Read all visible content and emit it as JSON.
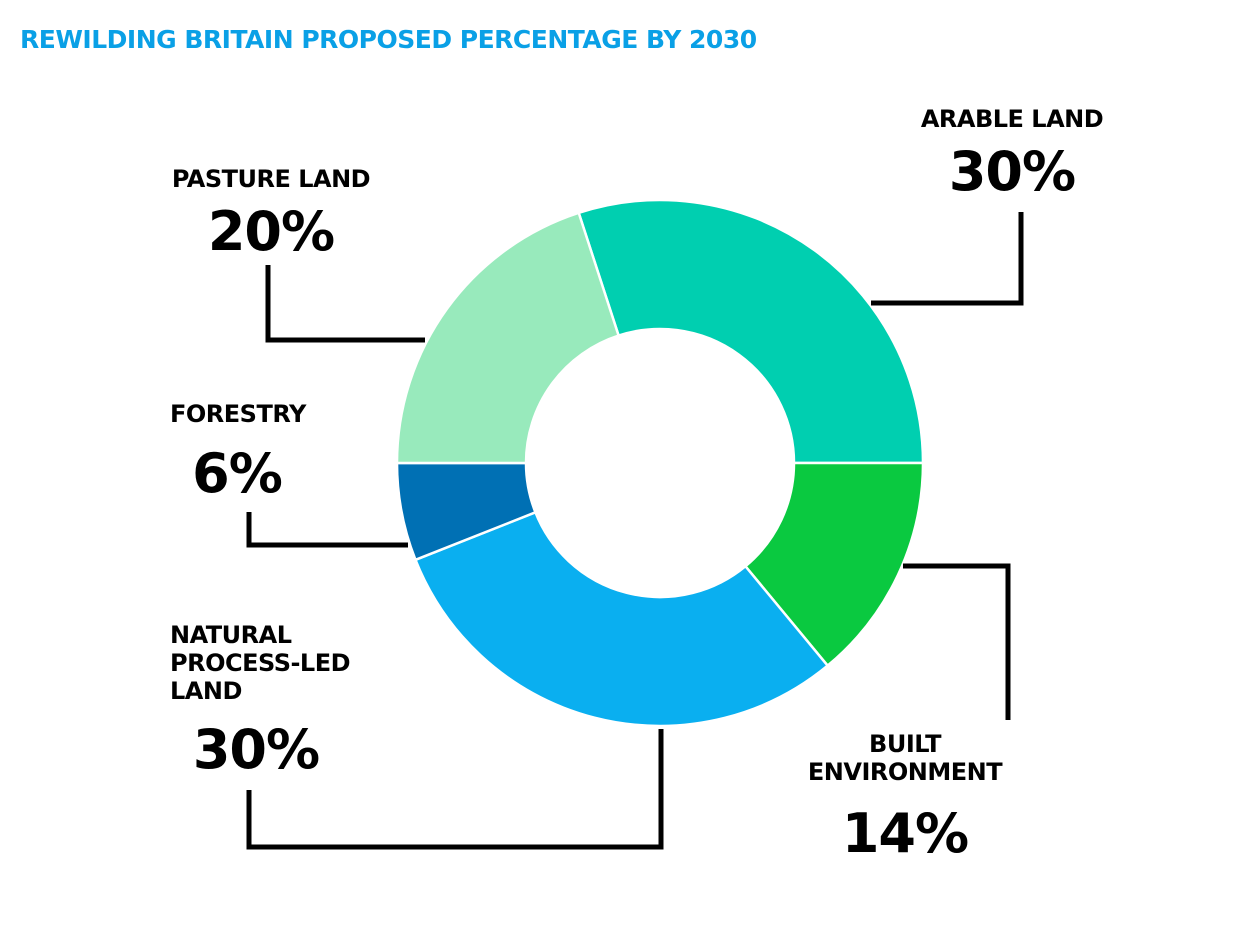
{
  "chart_data": {
    "type": "pie",
    "donut": true,
    "title": "REWILDING BRITAIN PROPOSED PERCENTAGE BY 2030",
    "title_color": "#0aa0e6",
    "slices": [
      {
        "id": "arable",
        "label_lines": [
          "ARABLE LAND"
        ],
        "value": 30,
        "value_label": "30%",
        "color": "#00cfb0"
      },
      {
        "id": "built",
        "label_lines": [
          "BUILT",
          "ENVIRONMENT"
        ],
        "value": 14,
        "value_label": "14%",
        "color": "#0ac940"
      },
      {
        "id": "natural",
        "label_lines": [
          "NATURAL",
          "PROCESS-LED",
          "LAND"
        ],
        "value": 30,
        "value_label": "30%",
        "color": "#0aaff0"
      },
      {
        "id": "forestry",
        "label_lines": [
          "FORESTRY"
        ],
        "value": 6,
        "value_label": "6%",
        "color": "#0070b4"
      },
      {
        "id": "pasture",
        "label_lines": [
          "PASTURE LAND"
        ],
        "value": 20,
        "value_label": "20%",
        "color": "#98eabc"
      }
    ]
  }
}
